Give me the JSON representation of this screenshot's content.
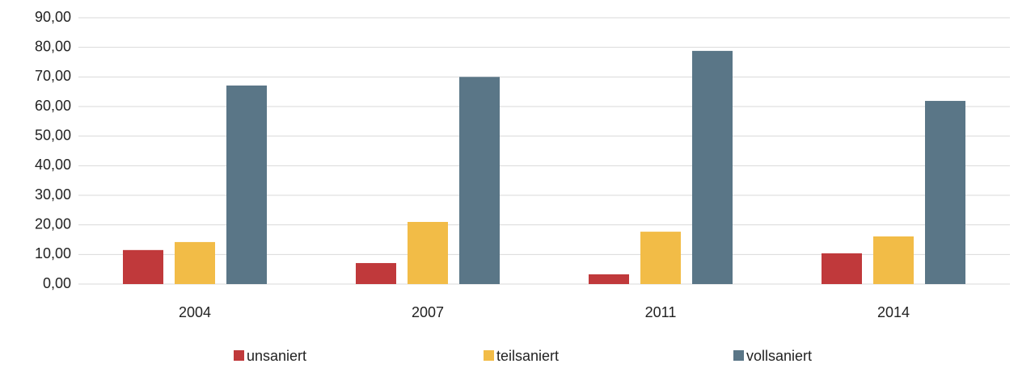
{
  "chart_data": {
    "type": "bar",
    "categories": [
      "2004",
      "2007",
      "2011",
      "2014"
    ],
    "series": [
      {
        "name": "unsaniert",
        "color": "#c0393b",
        "values": [
          11.5,
          7.1,
          3.3,
          10.4
        ]
      },
      {
        "name": "teilsaniert",
        "color": "#f2bc47",
        "values": [
          14.2,
          21,
          17.7,
          16.1
        ]
      },
      {
        "name": "vollsaniert",
        "color": "#5a7687",
        "values": [
          67.1,
          70,
          78.8,
          61.9
        ]
      }
    ],
    "ylim": [
      0,
      90
    ],
    "yticks": [
      {
        "value": 0,
        "label": "0,00"
      },
      {
        "value": 10,
        "label": "10,00"
      },
      {
        "value": 20,
        "label": "20,00"
      },
      {
        "value": 30,
        "label": "30,00"
      },
      {
        "value": 40,
        "label": "40,00"
      },
      {
        "value": 50,
        "label": "50,00"
      },
      {
        "value": 60,
        "label": "60,00"
      },
      {
        "value": 70,
        "label": "70,00"
      },
      {
        "value": 80,
        "label": "80,00"
      },
      {
        "value": 90,
        "label": "90,00"
      }
    ],
    "grid": true,
    "legend": "bottom"
  }
}
